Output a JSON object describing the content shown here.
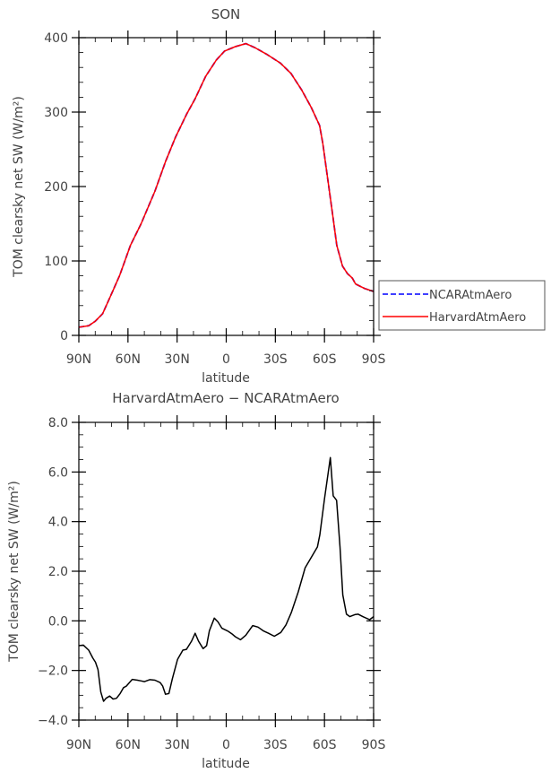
{
  "chart_data": [
    {
      "type": "line",
      "title": "SON",
      "xlabel": "latitude",
      "ylabel": "TOM clearsky net SW (W/m²)",
      "xlim": [
        90,
        -90
      ],
      "ylim": [
        0,
        400
      ],
      "x_ticks": [
        {
          "v": 90,
          "label": "90N"
        },
        {
          "v": 60,
          "label": "60N"
        },
        {
          "v": 30,
          "label": "30N"
        },
        {
          "v": 0,
          "label": "0"
        },
        {
          "v": -30,
          "label": "30S"
        },
        {
          "v": -60,
          "label": "60S"
        },
        {
          "v": -90,
          "label": "90S"
        }
      ],
      "y_ticks": [
        {
          "v": 0,
          "label": "0"
        },
        {
          "v": 100,
          "label": "100"
        },
        {
          "v": 200,
          "label": "200"
        },
        {
          "v": 300,
          "label": "300"
        },
        {
          "v": 400,
          "label": "400"
        }
      ],
      "grid": false,
      "legend_placement": "right",
      "series": [
        {
          "name": "NCARAtmAero",
          "color": "#0000ff",
          "dash": "dashed",
          "x": [
            90,
            84,
            80,
            75.5,
            69,
            65,
            58.5,
            52,
            43.5,
            37,
            31,
            24,
            19,
            12.6,
            6,
            1,
            -5.5,
            -12,
            -18,
            -24.5,
            -33,
            -39.5,
            -46,
            -52,
            -57,
            -59,
            -62,
            -65,
            -67.5,
            -71,
            -74,
            -77,
            -79,
            -84.5,
            -90
          ],
          "y": [
            11,
            13,
            19,
            29,
            61,
            81,
            121,
            150,
            194,
            234,
            266,
            298,
            318,
            348,
            370,
            382,
            388,
            392,
            386,
            378,
            366,
            352,
            330,
            306,
            282,
            258,
            210,
            162,
            121,
            93,
            83,
            77,
            69,
            63,
            59
          ]
        },
        {
          "name": "HarvardAtmAero",
          "color": "#ff0000",
          "dash": "solid",
          "x": [
            90,
            84,
            80,
            75.5,
            69,
            65,
            58.5,
            52,
            43.5,
            37,
            31,
            24,
            19,
            12.6,
            6,
            1,
            -5.5,
            -12,
            -18,
            -24.5,
            -33,
            -39.5,
            -46,
            -52,
            -57,
            -59,
            -62,
            -65,
            -67.5,
            -71,
            -74,
            -77,
            -79,
            -84.5,
            -90
          ],
          "y": [
            11,
            13,
            19,
            29,
            61,
            81,
            121,
            150,
            194,
            234,
            266,
            298,
            318,
            348,
            370,
            382,
            388,
            392,
            386,
            378,
            366,
            352,
            330,
            306,
            282,
            258,
            210,
            162,
            121,
            93,
            83,
            77,
            69,
            63,
            59
          ]
        }
      ]
    },
    {
      "type": "line",
      "title": "HarvardAtmAero − NCARAtmAero",
      "xlabel": "latitude",
      "ylabel": "TOM clearsky net SW (W/m²)",
      "xlim": [
        90,
        -90
      ],
      "ylim": [
        -4.0,
        8.0
      ],
      "x_ticks": [
        {
          "v": 90,
          "label": "90N"
        },
        {
          "v": 60,
          "label": "60N"
        },
        {
          "v": 30,
          "label": "30N"
        },
        {
          "v": 0,
          "label": "0"
        },
        {
          "v": -30,
          "label": "30S"
        },
        {
          "v": -60,
          "label": "60S"
        },
        {
          "v": -90,
          "label": "90S"
        }
      ],
      "y_ticks": [
        {
          "v": -4,
          "label": "−4.0"
        },
        {
          "v": -2,
          "label": "−2.0"
        },
        {
          "v": 0,
          "label": "0.0"
        },
        {
          "v": 2,
          "label": "2.0"
        },
        {
          "v": 4,
          "label": "4.0"
        },
        {
          "v": 6,
          "label": "6.0"
        },
        {
          "v": 8,
          "label": "8.0"
        }
      ],
      "grid": false,
      "series": [
        {
          "color": "#000000",
          "dash": "solid",
          "x": [
            90,
            87.2,
            84,
            81.5,
            79.8,
            78.3,
            76.6,
            74.9,
            73.4,
            71.2,
            69.1,
            67,
            64.8,
            62.7,
            61,
            57.4,
            54.2,
            52,
            49.9,
            46.7,
            43.5,
            40.3,
            38.8,
            37.1,
            35,
            32.9,
            29.7,
            26.5,
            24.3,
            21.2,
            19,
            16.9,
            14.1,
            12,
            10.3,
            7.3,
            5.1,
            2.6,
            -1.2,
            -3.4,
            -5.5,
            -8.7,
            -11.9,
            -16.2,
            -19.4,
            -22.6,
            -25.8,
            -29.4,
            -33.3,
            -36.5,
            -39.7,
            -44,
            -48.2,
            -52.5,
            -55.7,
            -57.2,
            -60,
            -63.6,
            -65.3,
            -67.4,
            -69.5,
            -71.2,
            -73.4,
            -75.5,
            -78.5,
            -80.6,
            -83.4,
            -87.6,
            -90
          ],
          "y": [
            -1.0,
            -0.98,
            -1.18,
            -1.49,
            -1.67,
            -1.97,
            -2.87,
            -3.24,
            -3.12,
            -3.03,
            -3.15,
            -3.12,
            -2.93,
            -2.69,
            -2.63,
            -2.36,
            -2.39,
            -2.42,
            -2.45,
            -2.37,
            -2.39,
            -2.49,
            -2.63,
            -2.96,
            -2.93,
            -2.33,
            -1.55,
            -1.18,
            -1.15,
            -0.82,
            -0.5,
            -0.82,
            -1.12,
            -1.0,
            -0.4,
            0.11,
            -0.04,
            -0.3,
            -0.42,
            -0.52,
            -0.64,
            -0.76,
            -0.58,
            -0.19,
            -0.25,
            -0.4,
            -0.5,
            -0.62,
            -0.47,
            -0.16,
            0.33,
            1.17,
            2.14,
            2.62,
            2.98,
            3.47,
            4.92,
            6.58,
            5.04,
            4.86,
            2.98,
            1.05,
            0.27,
            0.17,
            0.25,
            0.27,
            0.17,
            0.05,
            0.17
          ]
        }
      ]
    }
  ]
}
